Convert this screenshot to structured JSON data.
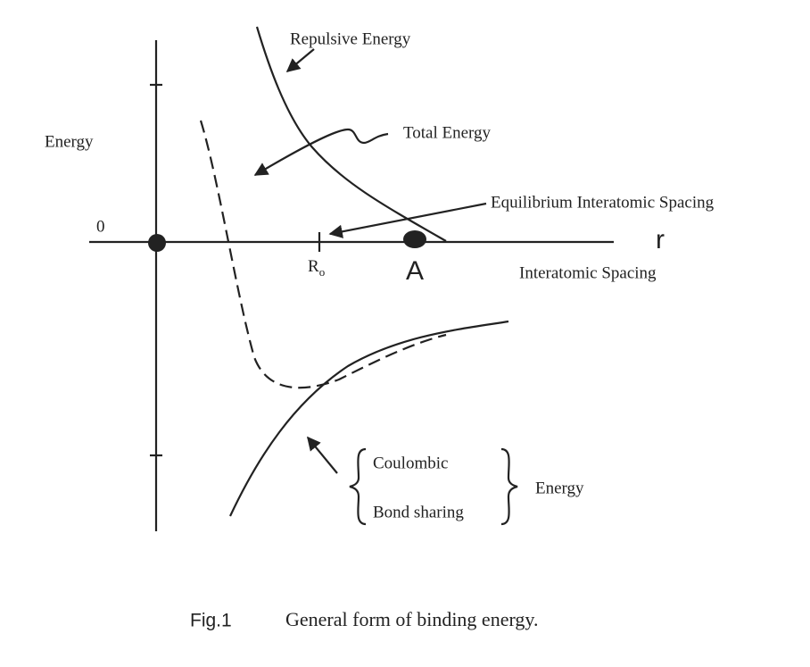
{
  "labels": {
    "repulsive": "Repulsive Energy",
    "total": "Total Energy",
    "y_axis": "Energy",
    "origin": "0",
    "equilibrium": "Equilibrium Interatomic Spacing",
    "r0": {
      "base": "R",
      "sub": "o"
    },
    "point_a": "A",
    "r": "r",
    "x_axis": "Interatomic Spacing",
    "coulombic": "Coulombic",
    "bond_sharing": "Bond sharing",
    "energy_group": "Energy"
  },
  "caption": {
    "number": "Fig.1",
    "text": "General form of binding energy."
  }
}
